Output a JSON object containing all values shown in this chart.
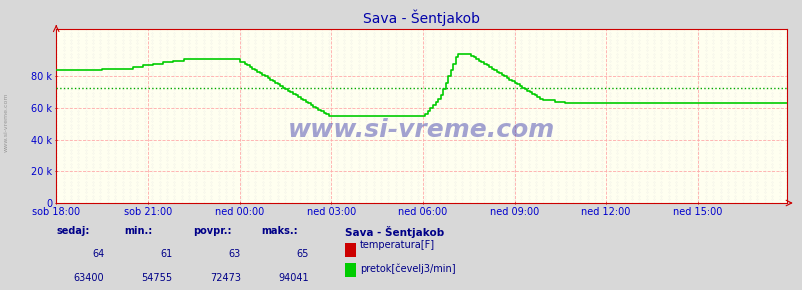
{
  "title": "Sava - Šentjakob",
  "bg_color": "#d8d8d8",
  "plot_bg_color": "#fffff0",
  "x_labels": [
    "sob 18:00",
    "sob 21:00",
    "ned 00:00",
    "ned 03:00",
    "ned 06:00",
    "ned 09:00",
    "ned 12:00",
    "ned 15:00"
  ],
  "x_ticks_positions": [
    0,
    36,
    72,
    108,
    144,
    180,
    216,
    252
  ],
  "total_points": 288,
  "ylim_max": 110000,
  "yticks": [
    0,
    20000,
    40000,
    60000,
    80000
  ],
  "ytick_labels": [
    "0",
    "20 k",
    "40 k",
    "60 k",
    "80 k"
  ],
  "avg_line_y": 72473,
  "flow_color": "#00cc00",
  "avg_color": "#00aa00",
  "grid_line_color": "#ffaaaa",
  "dot_color": "#dddddd",
  "axis_color": "#cc0000",
  "text_color": "#0000cc",
  "title_color": "#0000aa",
  "watermark": "www.si-vreme.com",
  "watermark_color": "#3333aa",
  "watermark_alpha": 0.45,
  "sidebar_text": "www.si-vreme.com",
  "footer_color": "#000088",
  "legend_title": "Sava - Šentjakob",
  "stats_headers": [
    "sedaj:",
    "min.:",
    "povpr.:",
    "maks.:"
  ],
  "stats_row1": [
    "64",
    "61",
    "63",
    "65"
  ],
  "stats_row2": [
    "63400",
    "54755",
    "72473",
    "94041"
  ],
  "temp_label": "temperatura[F]",
  "flow_label": "pretok[čevelj3/min]",
  "temp_color_box": "#cc0000",
  "flow_color_box": "#00cc00",
  "flow_data": [
    84000,
    84000,
    84000,
    84000,
    84000,
    84000,
    84000,
    84000,
    84000,
    84000,
    84000,
    84000,
    84000,
    84000,
    84000,
    84000,
    84000,
    84000,
    85000,
    85000,
    85000,
    85000,
    85000,
    85000,
    85000,
    85000,
    85000,
    85000,
    85000,
    85000,
    86000,
    86000,
    86000,
    86000,
    87000,
    87000,
    87000,
    87000,
    88000,
    88000,
    88000,
    88000,
    89000,
    89000,
    89000,
    89000,
    90000,
    90000,
    90000,
    90000,
    91000,
    91000,
    91000,
    91000,
    91000,
    91000,
    91000,
    91000,
    91000,
    91000,
    91000,
    91000,
    91000,
    91000,
    91000,
    91000,
    91000,
    91000,
    91000,
    91000,
    91000,
    91000,
    89000,
    89000,
    88000,
    87000,
    86000,
    85000,
    84000,
    83000,
    82000,
    81000,
    80000,
    79000,
    78000,
    77000,
    76000,
    75000,
    74000,
    73000,
    72000,
    71000,
    70000,
    69000,
    68000,
    67000,
    66000,
    65000,
    64000,
    63000,
    62000,
    61000,
    60000,
    59000,
    58000,
    57000,
    56000,
    55000,
    55000,
    55000,
    55000,
    55000,
    55000,
    55000,
    55000,
    55000,
    55000,
    55000,
    55000,
    55000,
    55000,
    55000,
    55000,
    55000,
    55000,
    55000,
    55000,
    55000,
    55000,
    55000,
    55000,
    55000,
    55000,
    55000,
    55000,
    55000,
    55000,
    55000,
    55000,
    55000,
    55000,
    55000,
    55000,
    55000,
    55000,
    56000,
    58000,
    60000,
    62000,
    64000,
    66000,
    68000,
    72000,
    76000,
    80000,
    84000,
    88000,
    92000,
    94000,
    94000,
    94000,
    94000,
    94000,
    93000,
    92000,
    91000,
    90000,
    89000,
    88000,
    87000,
    86000,
    85000,
    84000,
    83000,
    82000,
    81000,
    80000,
    79000,
    78000,
    77000,
    76000,
    75000,
    74000,
    73000,
    72000,
    71000,
    70000,
    69000,
    68000,
    67000,
    66000,
    65000,
    65000,
    65000,
    65000,
    65000,
    64000,
    64000,
    64000,
    64000,
    63000,
    63000,
    63000,
    63000,
    63000,
    63000,
    63000,
    63000,
    63000,
    63000,
    63000,
    63000,
    63000,
    63000,
    63000,
    63000,
    63000,
    63000,
    63000,
    63000,
    63000,
    63000,
    63000,
    63000,
    63000,
    63000,
    63000,
    63000,
    63000,
    63000,
    63000,
    63000,
    63000,
    63000,
    63000,
    63000,
    63000,
    63000,
    63000,
    63000,
    63000,
    63000,
    63000,
    63000,
    63000,
    63000,
    63000,
    63000,
    63000,
    63000,
    63000,
    63000,
    63000,
    63000,
    63000,
    63000,
    63000,
    63000,
    63000,
    63000,
    63000,
    63000,
    63000,
    63000,
    63000,
    63000,
    63000,
    63000,
    63000,
    63000,
    63000,
    63000,
    63000,
    63000,
    63000,
    63000,
    63000,
    63000,
    63000,
    63000,
    63000,
    63000,
    63000,
    63000,
    63000,
    63000,
    63000,
    63000
  ]
}
